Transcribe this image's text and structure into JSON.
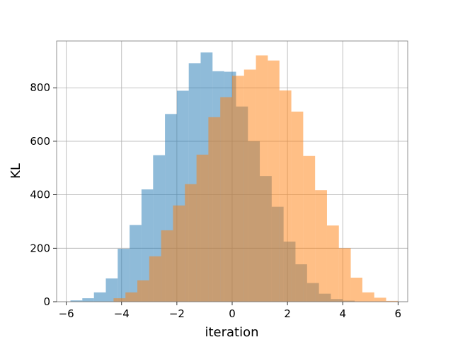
{
  "chart_data": {
    "type": "bar",
    "subtype": "histogram-overlay",
    "xlabel": "iteration",
    "ylabel": "KL",
    "xlim": [
      -6.35,
      6.35
    ],
    "ylim": [
      0,
      975
    ],
    "xticks": [
      -6,
      -4,
      -2,
      0,
      2,
      4,
      6
    ],
    "xtick_labels": [
      "−6",
      "−4",
      "−2",
      "0",
      "2",
      "4",
      "6"
    ],
    "yticks": [
      0,
      200,
      400,
      600,
      800
    ],
    "ytick_labels": [
      "0",
      "200",
      "400",
      "600",
      "800"
    ],
    "grid": true,
    "legend": "none",
    "series": [
      {
        "color": "#1f77b4",
        "alpha": 0.5,
        "bin_edges": [
          -5.85,
          -5.42,
          -5.0,
          -4.57,
          -4.14,
          -3.71,
          -3.28,
          -2.86,
          -2.43,
          -2.0,
          -1.57,
          -1.14,
          -0.71,
          -0.29,
          0.14,
          0.57,
          1.0,
          1.43,
          1.86,
          2.29,
          2.71,
          3.14,
          3.57,
          4.0,
          4.43
        ],
        "values": [
          5,
          13,
          35,
          87,
          198,
          287,
          420,
          548,
          702,
          789,
          892,
          932,
          862,
          860,
          730,
          600,
          470,
          355,
          225,
          140,
          70,
          30,
          10,
          4
        ]
      },
      {
        "color": "#ff7f0e",
        "alpha": 0.5,
        "bin_edges": [
          -4.29,
          -3.86,
          -3.43,
          -3.0,
          -2.57,
          -2.14,
          -1.71,
          -1.29,
          -0.86,
          -0.43,
          0.0,
          0.43,
          0.86,
          1.29,
          1.71,
          2.14,
          2.57,
          3.0,
          3.43,
          3.86,
          4.29,
          4.71,
          5.14,
          5.57,
          6.0
        ],
        "values": [
          13,
          35,
          80,
          170,
          267,
          360,
          440,
          550,
          690,
          765,
          845,
          868,
          921,
          902,
          790,
          711,
          545,
          417,
          285,
          200,
          90,
          35,
          15,
          3
        ]
      }
    ]
  }
}
